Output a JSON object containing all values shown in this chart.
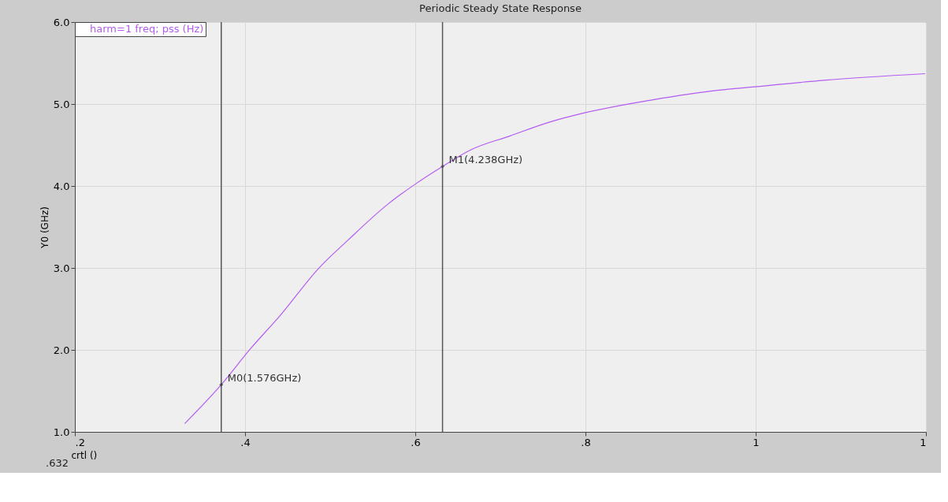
{
  "chart_data": {
    "type": "line",
    "title": "Periodic Steady State Response",
    "xlabel": "crtl ()",
    "ylabel": "Y0 (GHz)",
    "x": [
      0.329,
      0.372,
      0.406,
      0.442,
      0.486,
      0.521,
      0.568,
      0.601,
      0.632,
      0.665,
      0.711,
      0.758,
      0.798,
      0.878,
      0.957,
      0.999,
      1.08,
      1.199
    ],
    "series": [
      {
        "name": "harm=1 freq; pss (Hz)",
        "color": "#b35cf2",
        "values": [
          1.1,
          1.576,
          2.01,
          2.43,
          2.99,
          3.34,
          3.78,
          4.03,
          4.238,
          4.44,
          4.61,
          4.78,
          4.89,
          5.05,
          5.17,
          5.21,
          5.29,
          5.37
        ]
      }
    ],
    "xlim": [
      0.2,
      1.2
    ],
    "xticks": [
      {
        "value": 0.2,
        "label": ".2"
      },
      {
        "value": 0.4,
        "label": ".4"
      },
      {
        "value": 0.6,
        "label": ".6"
      },
      {
        "value": 0.8,
        "label": ".8"
      },
      1,
      {
        "value": 1.2,
        "label": "1"
      }
    ],
    "ylim": [
      1.0,
      6.0
    ],
    "yticks": [
      {
        "value": 1,
        "label": "1.0"
      },
      {
        "value": 2,
        "label": "2.0"
      },
      {
        "value": 3,
        "label": "3.0"
      },
      {
        "value": 4,
        "label": "4.0"
      },
      {
        "value": 5,
        "label": "5.0"
      },
      {
        "value": 6,
        "label": "6.0"
      }
    ],
    "ref_lines": [
      {
        "axis": "x",
        "value": 0.372,
        "color": "#555555"
      },
      {
        "axis": "x",
        "value": 0.632,
        "color": "#555555"
      }
    ],
    "annotations": [
      {
        "text": "M0(1.576GHz)",
        "x": 0.372,
        "y": 1.576
      },
      {
        "text": "M1(4.238GHz)",
        "x": 0.632,
        "y": 4.238
      },
      ".632"
    ],
    "grid": true,
    "legend": "top left",
    "marker": "none",
    "line_style": "solid"
  }
}
